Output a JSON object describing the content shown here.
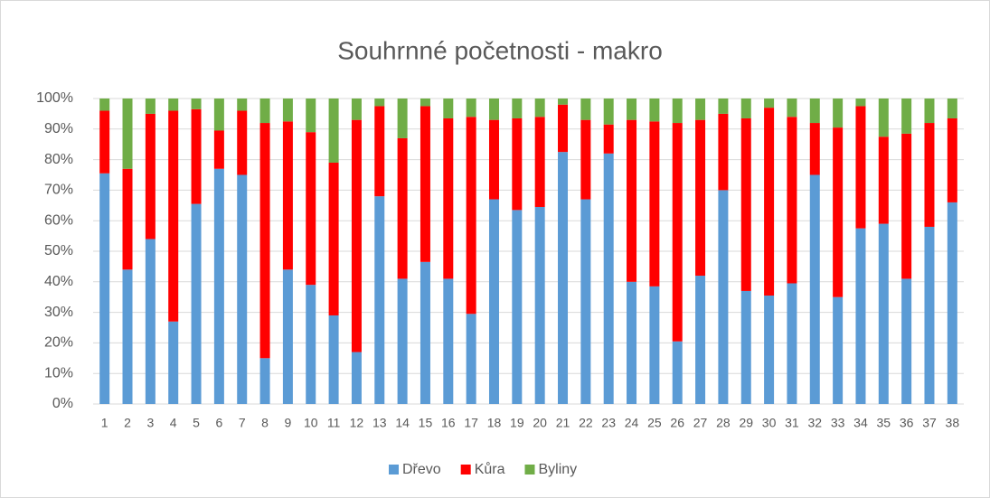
{
  "chart_data": {
    "type": "stacked_bar",
    "title": "Souhrnné početnosti - makro",
    "categories": [
      "1",
      "2",
      "3",
      "4",
      "5",
      "6",
      "7",
      "8",
      "9",
      "10",
      "11",
      "12",
      "13",
      "14",
      "15",
      "16",
      "17",
      "18",
      "19",
      "20",
      "21",
      "22",
      "23",
      "24",
      "25",
      "26",
      "27",
      "28",
      "29",
      "30",
      "31",
      "32",
      "33",
      "34",
      "35",
      "36",
      "37",
      "38"
    ],
    "series": [
      {
        "name": "Dřevo",
        "color": "#5b9bd5",
        "values": [
          75.5,
          44,
          54,
          27,
          65.5,
          77,
          75,
          15,
          44,
          39,
          29,
          17,
          68,
          41,
          46.5,
          41,
          29.5,
          67,
          63.5,
          64.5,
          82.5,
          67,
          82,
          40,
          38.5,
          20.5,
          42,
          70,
          37,
          35.5,
          39.5,
          75,
          35,
          57.5,
          59,
          41,
          58,
          66
        ]
      },
      {
        "name": "Kůra",
        "color": "#ff0000",
        "values": [
          20.5,
          33,
          41,
          69,
          31,
          12.5,
          21,
          77,
          48.5,
          50,
          50,
          76,
          29.5,
          46,
          51,
          52.5,
          64.5,
          26,
          30,
          29.5,
          15.5,
          26,
          9.5,
          53,
          54,
          71.5,
          51,
          25,
          56.5,
          61.5,
          54.5,
          17,
          55.5,
          40,
          28.5,
          47.5,
          34,
          27.5
        ]
      },
      {
        "name": "Byliny",
        "color": "#70ad47",
        "values": [
          4,
          23,
          5,
          4,
          3.5,
          10.5,
          4,
          8,
          7.5,
          11,
          21,
          7,
          2.5,
          13,
          2.5,
          6.5,
          6,
          7,
          6.5,
          6,
          2,
          7,
          8.5,
          7,
          7.5,
          8,
          7,
          5,
          6.5,
          3,
          6,
          8,
          9.5,
          2.5,
          12.5,
          11.5,
          8,
          6.5
        ]
      }
    ],
    "ylim": [
      0,
      100
    ],
    "yticks": [
      {
        "value": 0,
        "label": "0%"
      },
      {
        "value": 10,
        "label": "10%"
      },
      {
        "value": 20,
        "label": "20%"
      },
      {
        "value": 30,
        "label": "30%"
      },
      {
        "value": 40,
        "label": "40%"
      },
      {
        "value": 50,
        "label": "50%"
      },
      {
        "value": 60,
        "label": "60%"
      },
      {
        "value": 70,
        "label": "70%"
      },
      {
        "value": 80,
        "label": "80%"
      },
      {
        "value": 90,
        "label": "90%"
      },
      {
        "value": 100,
        "label": "100%"
      }
    ],
    "grid": true,
    "legend": "bottom"
  }
}
